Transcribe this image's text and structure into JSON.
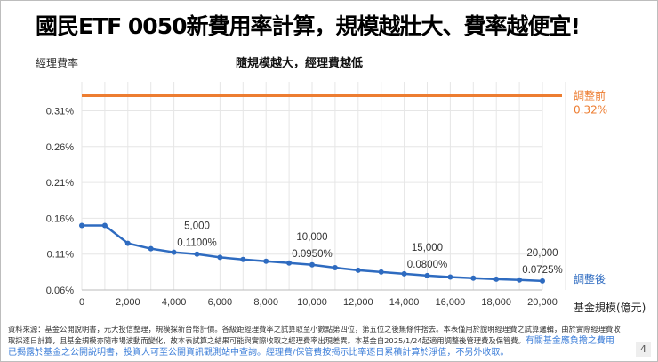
{
  "title": "國民ETF 0050新費用率計算，規模越壯大、費率越便宜!",
  "chart_data": {
    "type": "line",
    "title": "隨規模越大，經理費越低",
    "ylabel": "經理費率",
    "xlabel": "基金規模(億元)",
    "xlim": [
      0,
      20000
    ],
    "ylim": [
      0.06,
      0.32
    ],
    "xticks": [
      "0",
      "2,000",
      "4,000",
      "6,000",
      "8,000",
      "10,000",
      "12,000",
      "14,000",
      "16,000",
      "18,000",
      "20,000"
    ],
    "yticks": [
      "0.06%",
      "0.11%",
      "0.16%",
      "0.21%",
      "0.26%",
      "0.31%"
    ],
    "grid": true,
    "series": [
      {
        "name": "調整前",
        "label_value": "0.32%",
        "color": "#ed7d31",
        "x": [
          0,
          20000
        ],
        "y": [
          0.32,
          0.32
        ]
      },
      {
        "name": "調整後",
        "color": "#2e6bc0",
        "x": [
          0,
          1000,
          2000,
          3000,
          4000,
          5000,
          6000,
          7000,
          8000,
          9000,
          10000,
          11000,
          12000,
          13000,
          14000,
          15000,
          16000,
          17000,
          18000,
          19000,
          20000
        ],
        "y": [
          0.15,
          0.15,
          0.125,
          0.1175,
          0.1125,
          0.11,
          0.1055,
          0.1025,
          0.1,
          0.0975,
          0.095,
          0.091,
          0.0875,
          0.085,
          0.0825,
          0.08,
          0.078,
          0.0765,
          0.075,
          0.074,
          0.0725
        ]
      }
    ],
    "annotations": [
      {
        "x": 5000,
        "y": 0.11,
        "scale": "5,000",
        "rate": "0.1100%"
      },
      {
        "x": 10000,
        "y": 0.095,
        "scale": "10,000",
        "rate": "0.0950%"
      },
      {
        "x": 15000,
        "y": 0.08,
        "scale": "15,000",
        "rate": "0.0800%"
      },
      {
        "x": 20000,
        "y": 0.0725,
        "scale": "20,000",
        "rate": "0.0725%"
      }
    ]
  },
  "footnote": {
    "text": "資料來源：基金公開說明書，元大投信整理，規模採新台幣計價。各級距經理費率之試算取至小數點第四位，第五位之後無條件捨去。本表僅用於說明經理費之試算邏輯，由於實際經理費收取採逐日計算，且基金規模亦隨市場波動而變化，故本表試算之結果可能與實際收取之經理費率出現差異。本基金自2025/1/24起適用調整後管理費及保管費。",
    "highlight": "有關基金應負擔之費用已揭露於基金之公開說明書，投資人可至公開資訊觀測站中查詢。經理費/保管費按揭示比率逐日累積計算於淨值，不另外收取。"
  },
  "page_number": "4"
}
